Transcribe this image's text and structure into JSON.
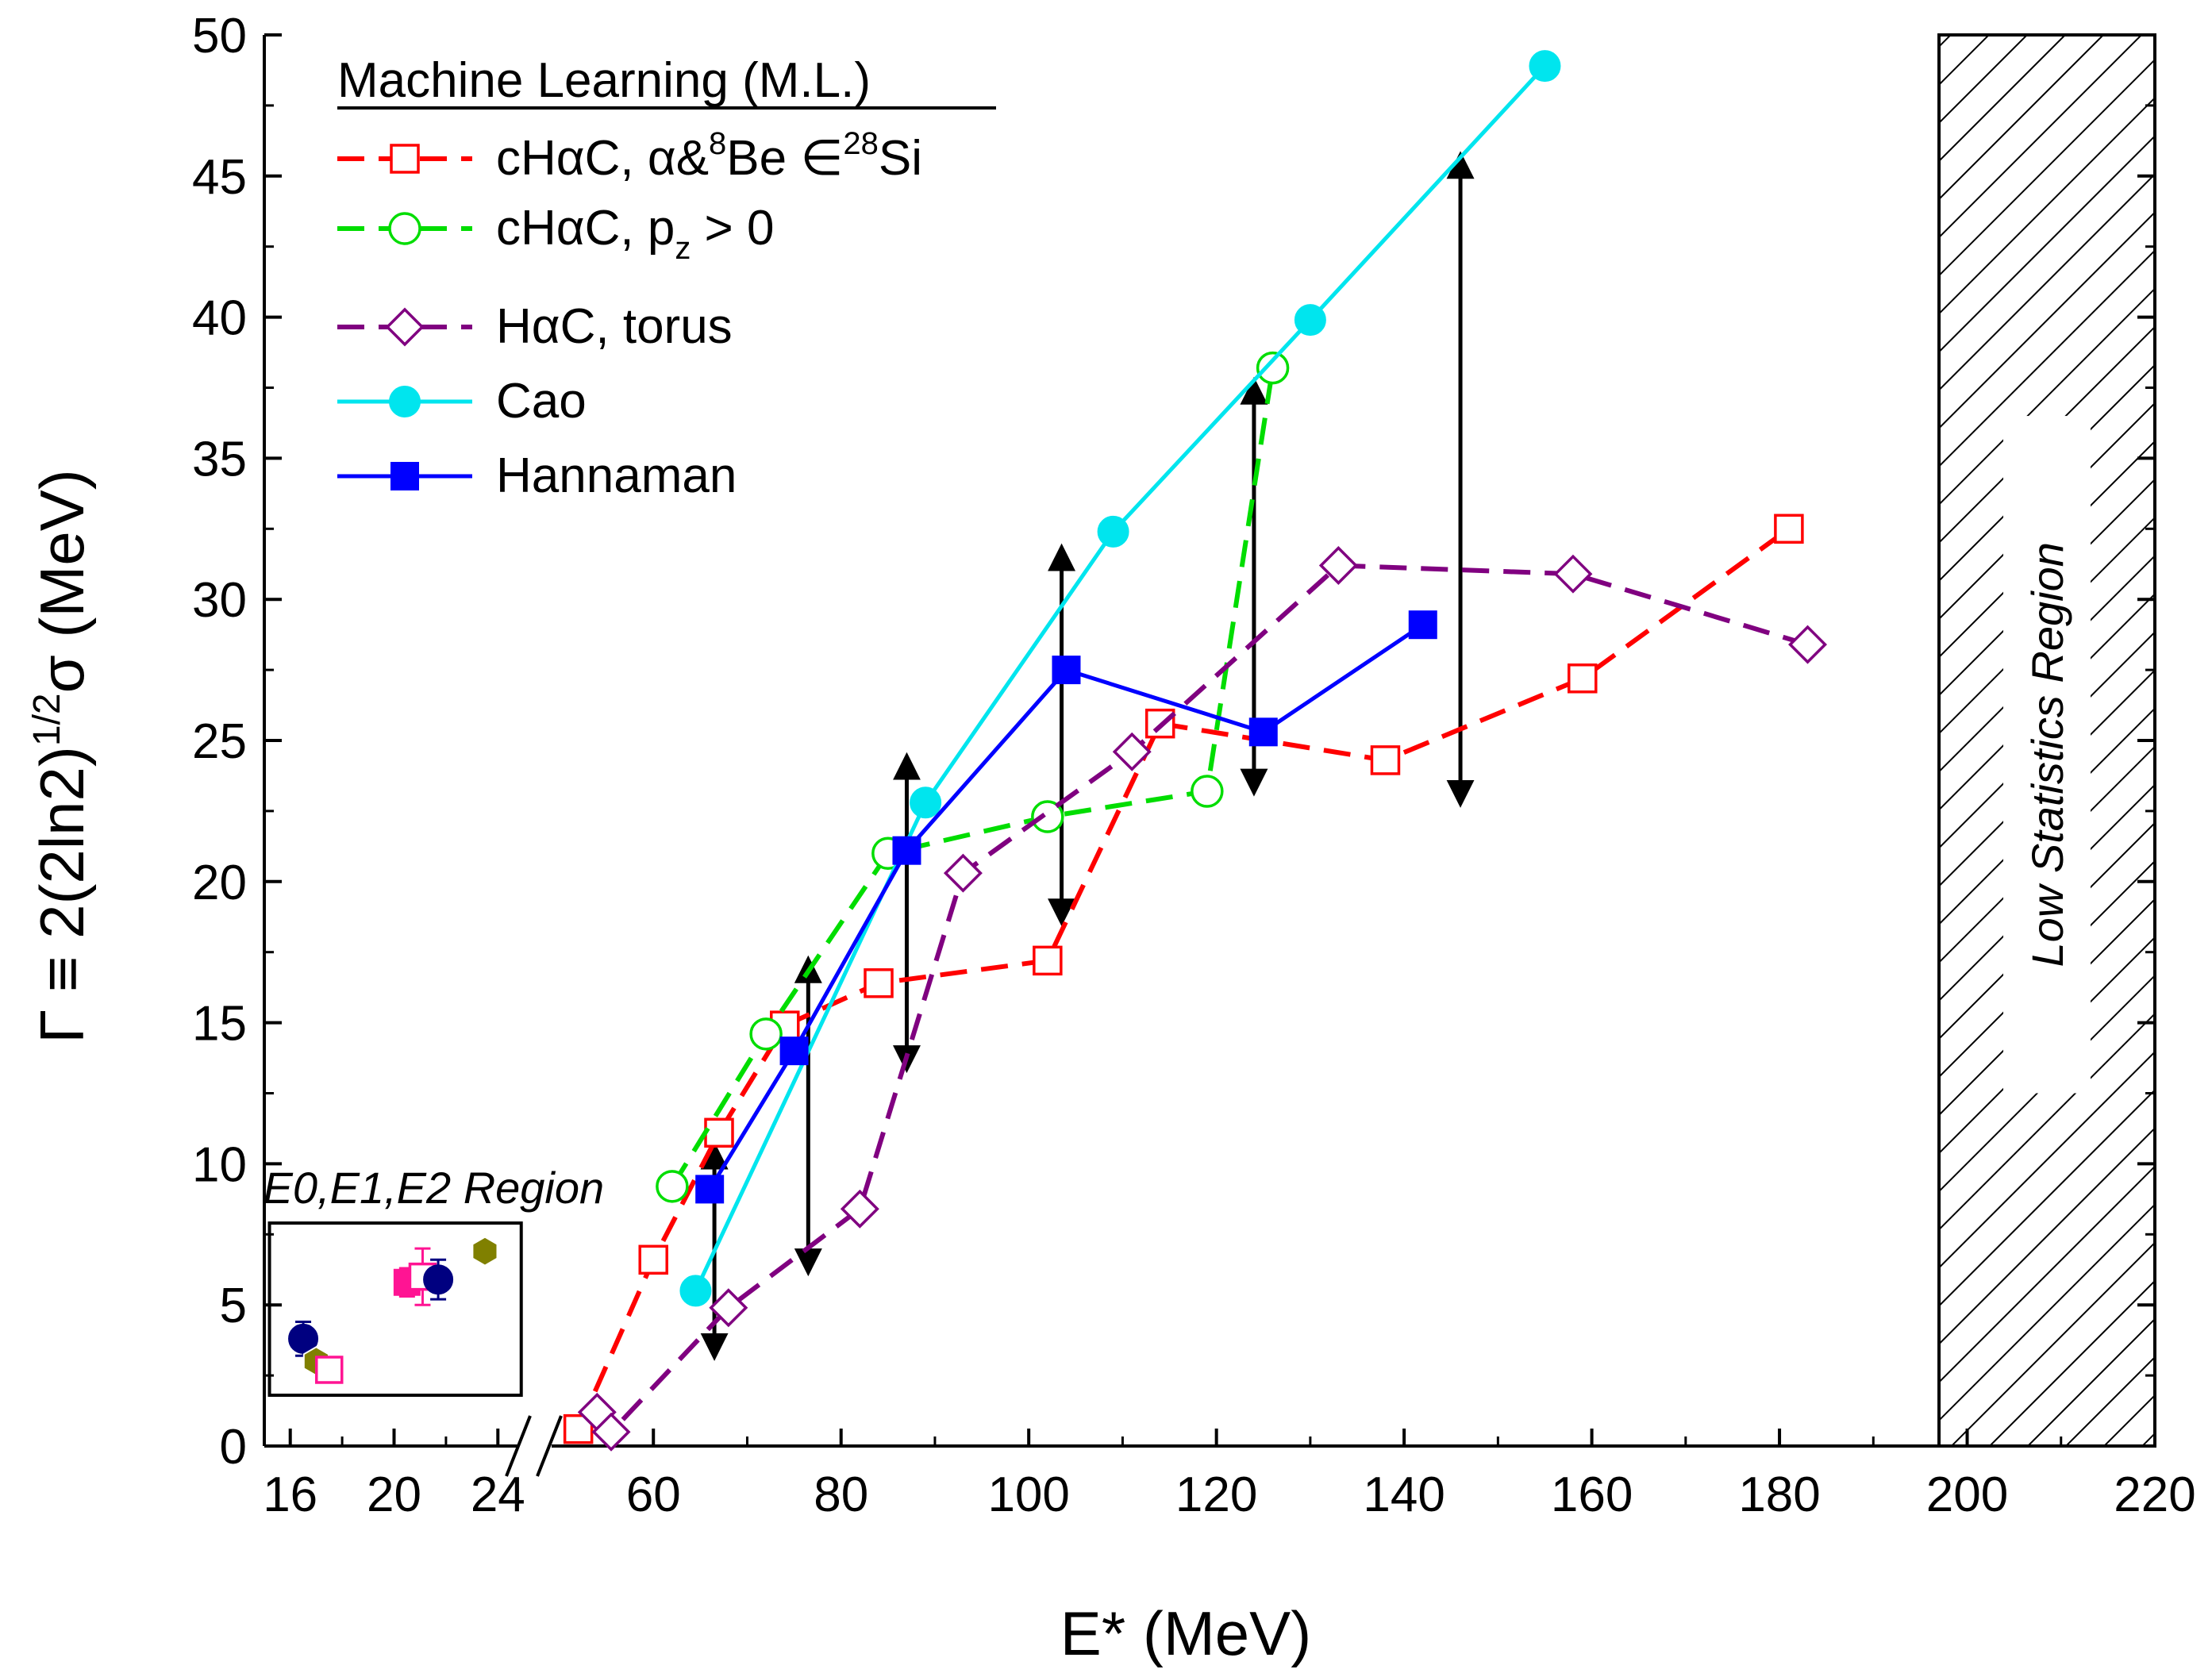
{
  "chart_data": {
    "type": "line",
    "xlabel": "E* (MeV)",
    "ylabel": {
      "prefix": "Γ ≡ 2(2ln2)",
      "sup": "1/2",
      "suffix": "σ (MeV)"
    },
    "ylim": [
      0,
      50
    ],
    "yticks": [
      "0",
      "5",
      "10",
      "15",
      "20",
      "25",
      "30",
      "35",
      "40",
      "45",
      "50"
    ],
    "xticks_left": [
      "16",
      "20",
      "24"
    ],
    "xticks_right": [
      "60",
      "80",
      "100",
      "120",
      "140",
      "160",
      "180",
      "200",
      "220"
    ],
    "x_axis_break": {
      "left_range": [
        15,
        25
      ],
      "right_range": [
        50,
        220
      ]
    },
    "legend": {
      "title": "Machine Learning (M.L.)",
      "entries": [
        {
          "series": "chac_alpha",
          "parts": [
            [
              "cHαC, α&",
              ""
            ],
            [
              "8",
              "sup"
            ],
            [
              "Be ∈",
              ""
            ],
            [
              "28",
              "sup"
            ],
            [
              "Si",
              ""
            ]
          ]
        },
        {
          "series": "chac_pz",
          "parts": [
            [
              "cHαC, p",
              ""
            ],
            [
              "z",
              "sub"
            ],
            [
              " > 0",
              ""
            ]
          ]
        },
        {
          "series": "hac_torus",
          "parts": [
            [
              "HαC, torus",
              ""
            ]
          ]
        },
        {
          "series": "cao",
          "parts": [
            [
              "Cao",
              ""
            ]
          ]
        },
        {
          "series": "hannaman",
          "parts": [
            [
              "Hannaman",
              ""
            ]
          ]
        }
      ]
    },
    "series": [
      {
        "id": "chac_alpha",
        "name": "cHαC, α&8Be ∈28Si",
        "color": "#ff0000",
        "line": "dash",
        "marker": "square-open",
        "points": [
          [
            52,
            0.6
          ],
          [
            60,
            6.6
          ],
          [
            67,
            11.1
          ],
          [
            74,
            14.9
          ],
          [
            84,
            16.4
          ],
          [
            102,
            17.2
          ],
          [
            114,
            25.6
          ],
          [
            138,
            24.3
          ],
          [
            159,
            27.2
          ],
          [
            181,
            32.5
          ]
        ]
      },
      {
        "id": "chac_pz",
        "name": "cHαC, pz > 0",
        "color": "#00dd00",
        "line": "dash",
        "marker": "circle-open",
        "points": [
          [
            62,
            9.2
          ],
          [
            72,
            14.6
          ],
          [
            85,
            21.0
          ],
          [
            102,
            22.3
          ],
          [
            119,
            23.2
          ],
          [
            126,
            38.2
          ]
        ]
      },
      {
        "id": "hac_torus",
        "name": "HαC, torus",
        "color": "#800080",
        "line": "dash",
        "marker": "diamond-open",
        "points": [
          [
            54,
            1.2
          ],
          [
            55.5,
            0.5
          ],
          [
            68,
            4.9
          ],
          [
            82,
            8.4
          ],
          [
            93,
            20.3
          ],
          [
            111,
            24.6
          ],
          [
            133,
            31.2
          ],
          [
            158,
            30.9
          ],
          [
            183,
            28.4
          ]
        ]
      },
      {
        "id": "cao",
        "name": "Cao",
        "color": "#00e5ee",
        "line": "solid",
        "marker": "circle-filled",
        "points": [
          [
            64.5,
            5.5
          ],
          [
            89,
            22.8
          ],
          [
            109,
            32.4
          ],
          [
            130,
            39.9
          ],
          [
            155,
            48.9
          ]
        ]
      },
      {
        "id": "hannaman",
        "name": "Hannaman",
        "color": "#0000ff",
        "line": "solid",
        "marker": "square-filled",
        "points": [
          [
            66,
            9.1
          ],
          [
            75,
            14.0
          ],
          [
            87,
            21.1
          ],
          [
            104,
            27.5
          ],
          [
            125,
            25.3
          ],
          [
            142,
            29.1
          ]
        ]
      }
    ],
    "arrows": [
      {
        "x": 66.5,
        "y1": 3.0,
        "y2": 10.8
      },
      {
        "x": 76.5,
        "y1": 6.0,
        "y2": 17.4
      },
      {
        "x": 87.0,
        "y1": 13.2,
        "y2": 24.6
      },
      {
        "x": 103.5,
        "y1": 18.4,
        "y2": 32.0
      },
      {
        "x": 124.0,
        "y1": 23.0,
        "y2": 37.9
      },
      {
        "x": 146.0,
        "y1": 22.6,
        "y2": 45.9
      }
    ],
    "inset": {
      "label": "E0,E1,E2 Region",
      "points": [
        {
          "x": 16.5,
          "y": 3.8,
          "err": 0.6,
          "color": "#000080",
          "marker": "circle-filled"
        },
        {
          "x": 17.0,
          "y": 3.0,
          "err": 0.3,
          "color": "#808000",
          "marker": "hexagon"
        },
        {
          "x": 17.5,
          "y": 2.7,
          "err": 0.3,
          "color": "#ff1493",
          "marker": "square-open"
        },
        {
          "x": 20.5,
          "y": 5.8,
          "err": 0.5,
          "color": "#ff1493",
          "marker": "square-filled"
        },
        {
          "x": 21.1,
          "y": 6.0,
          "err": 1.0,
          "color": "#ff1493",
          "marker": "square-open"
        },
        {
          "x": 21.7,
          "y": 5.9,
          "err": 0.7,
          "color": "#000080",
          "marker": "circle-filled"
        },
        {
          "x": 23.5,
          "y": 6.9,
          "err": 0.3,
          "color": "#808000",
          "marker": "hexagon"
        }
      ]
    },
    "low_stats_region": {
      "label": "Low Statistics Region",
      "xrange": [
        197,
        220
      ]
    }
  }
}
